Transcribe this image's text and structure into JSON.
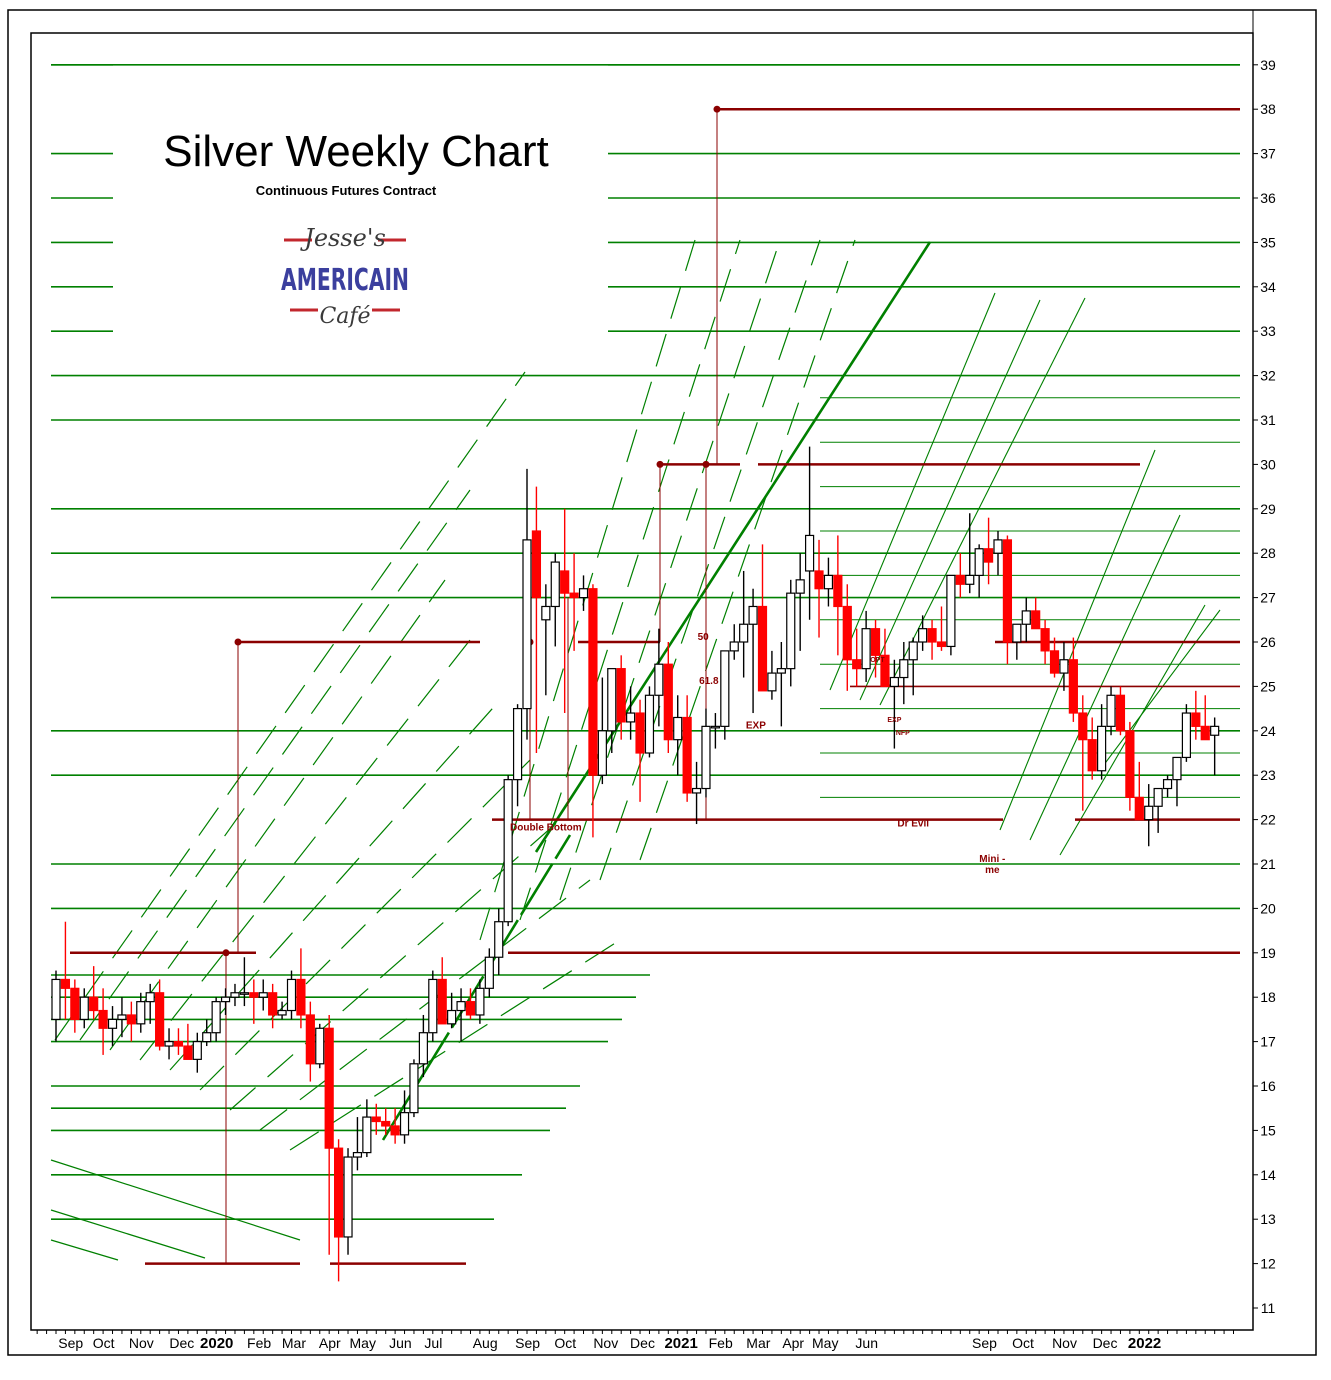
{
  "chart_data": {
    "type": "candlestick",
    "title": "Silver Weekly Chart",
    "subtitle": "Continuous Futures Contract",
    "logo": {
      "line1": "Jesse's",
      "line2": "AMERICAIN",
      "line3": "Café"
    },
    "ylim": [
      10.5,
      39.5
    ],
    "yticks": [
      11,
      12,
      13,
      14,
      15,
      16,
      17,
      18,
      19,
      20,
      21,
      22,
      23,
      24,
      25,
      26,
      27,
      28,
      29,
      30,
      31,
      32,
      33,
      34,
      35,
      36,
      37,
      38,
      39
    ],
    "x_labels": [
      {
        "text": "Sep",
        "week": 0.5
      },
      {
        "text": "Oct",
        "week": 4
      },
      {
        "text": "Nov",
        "week": 8
      },
      {
        "text": "Dec",
        "week": 12.3
      },
      {
        "text": "2020",
        "week": 16,
        "bold": true
      },
      {
        "text": "Feb",
        "week": 20.5
      },
      {
        "text": "Mar",
        "week": 24.2
      },
      {
        "text": "Apr",
        "week": 28
      },
      {
        "text": "May",
        "week": 31.5
      },
      {
        "text": "Jun",
        "week": 35.5
      },
      {
        "text": "Jul",
        "week": 39
      },
      {
        "text": "Aug",
        "week": 44.5
      },
      {
        "text": "Sep",
        "week": 49
      },
      {
        "text": "Oct",
        "week": 53
      },
      {
        "text": "Nov",
        "week": 57.3
      },
      {
        "text": "Dec",
        "week": 61.2
      },
      {
        "text": "2021",
        "week": 65.3,
        "bold": true
      },
      {
        "text": "Feb",
        "week": 69.5
      },
      {
        "text": "Mar",
        "week": 73.5
      },
      {
        "text": "Apr",
        "week": 77.2
      },
      {
        "text": "May",
        "week": 80.6
      },
      {
        "text": "Jun",
        "week": 85
      },
      {
        "text": "Sep",
        "week": 97.5
      },
      {
        "text": "Oct",
        "week": 101.6
      },
      {
        "text": "Nov",
        "week": 106
      },
      {
        "text": "Dec",
        "week": 110.3
      },
      {
        "text": "2022",
        "week": 114.5,
        "bold": true
      }
    ],
    "candles": [
      {
        "o": 17.5,
        "h": 18.6,
        "l": 17.0,
        "c": 18.4
      },
      {
        "o": 18.4,
        "h": 19.7,
        "l": 17.5,
        "c": 18.2
      },
      {
        "o": 18.2,
        "h": 18.4,
        "l": 17.2,
        "c": 17.5
      },
      {
        "o": 17.5,
        "h": 18.2,
        "l": 17.3,
        "c": 18.0
      },
      {
        "o": 18.0,
        "h": 18.7,
        "l": 17.5,
        "c": 17.7
      },
      {
        "o": 17.7,
        "h": 18.2,
        "l": 16.7,
        "c": 17.3
      },
      {
        "o": 17.3,
        "h": 17.8,
        "l": 16.9,
        "c": 17.5
      },
      {
        "o": 17.5,
        "h": 18.0,
        "l": 17.1,
        "c": 17.6
      },
      {
        "o": 17.6,
        "h": 17.9,
        "l": 17.0,
        "c": 17.4
      },
      {
        "o": 17.4,
        "h": 18.1,
        "l": 17.2,
        "c": 17.9
      },
      {
        "o": 17.9,
        "h": 18.3,
        "l": 17.4,
        "c": 18.1
      },
      {
        "o": 18.1,
        "h": 18.4,
        "l": 16.8,
        "c": 16.9
      },
      {
        "o": 16.9,
        "h": 17.3,
        "l": 16.6,
        "c": 17.0
      },
      {
        "o": 17.0,
        "h": 17.3,
        "l": 16.7,
        "c": 16.9
      },
      {
        "o": 16.9,
        "h": 17.4,
        "l": 16.6,
        "c": 16.6
      },
      {
        "o": 16.6,
        "h": 17.2,
        "l": 16.3,
        "c": 17.0
      },
      {
        "o": 17.0,
        "h": 17.5,
        "l": 16.9,
        "c": 17.2
      },
      {
        "o": 17.2,
        "h": 18.0,
        "l": 17.0,
        "c": 17.9
      },
      {
        "o": 17.9,
        "h": 18.2,
        "l": 17.6,
        "c": 18.0
      },
      {
        "o": 18.0,
        "h": 18.3,
        "l": 17.8,
        "c": 18.1
      },
      {
        "o": 18.1,
        "h": 18.9,
        "l": 17.8,
        "c": 18.1
      },
      {
        "o": 18.1,
        "h": 18.4,
        "l": 17.4,
        "c": 18.0
      },
      {
        "o": 18.0,
        "h": 18.4,
        "l": 17.7,
        "c": 18.1
      },
      {
        "o": 18.1,
        "h": 18.3,
        "l": 17.3,
        "c": 17.6
      },
      {
        "o": 17.6,
        "h": 17.9,
        "l": 17.5,
        "c": 17.7
      },
      {
        "o": 17.7,
        "h": 18.6,
        "l": 17.5,
        "c": 18.4
      },
      {
        "o": 18.4,
        "h": 19.1,
        "l": 17.3,
        "c": 17.6
      },
      {
        "o": 17.6,
        "h": 17.9,
        "l": 16.1,
        "c": 16.5
      },
      {
        "o": 16.5,
        "h": 17.4,
        "l": 16.4,
        "c": 17.3
      },
      {
        "o": 17.3,
        "h": 17.6,
        "l": 12.2,
        "c": 14.6
      },
      {
        "o": 14.6,
        "h": 14.8,
        "l": 11.6,
        "c": 12.6
      },
      {
        "o": 12.6,
        "h": 14.6,
        "l": 12.2,
        "c": 14.4
      },
      {
        "o": 14.4,
        "h": 15.3,
        "l": 14.1,
        "c": 14.5
      },
      {
        "o": 14.5,
        "h": 15.7,
        "l": 14.4,
        "c": 15.3
      },
      {
        "o": 15.3,
        "h": 15.6,
        "l": 14.9,
        "c": 15.2
      },
      {
        "o": 15.2,
        "h": 15.5,
        "l": 14.9,
        "c": 15.1
      },
      {
        "o": 15.1,
        "h": 15.5,
        "l": 14.7,
        "c": 14.9
      },
      {
        "o": 14.9,
        "h": 15.9,
        "l": 14.7,
        "c": 15.4
      },
      {
        "o": 15.4,
        "h": 16.6,
        "l": 15.3,
        "c": 16.5
      },
      {
        "o": 16.5,
        "h": 17.6,
        "l": 16.2,
        "c": 17.2
      },
      {
        "o": 17.2,
        "h": 18.6,
        "l": 17.0,
        "c": 18.4
      },
      {
        "o": 18.4,
        "h": 18.9,
        "l": 17.4,
        "c": 17.4
      },
      {
        "o": 17.4,
        "h": 18.1,
        "l": 17.3,
        "c": 17.7
      },
      {
        "o": 17.7,
        "h": 18.2,
        "l": 17.0,
        "c": 17.9
      },
      {
        "o": 17.9,
        "h": 18.2,
        "l": 17.5,
        "c": 17.6
      },
      {
        "o": 17.6,
        "h": 18.4,
        "l": 17.4,
        "c": 18.2
      },
      {
        "o": 18.2,
        "h": 19.1,
        "l": 18.0,
        "c": 18.9
      },
      {
        "o": 18.9,
        "h": 20.0,
        "l": 18.5,
        "c": 19.7
      },
      {
        "o": 19.7,
        "h": 23.0,
        "l": 19.6,
        "c": 22.9
      },
      {
        "o": 22.9,
        "h": 24.6,
        "l": 22.3,
        "c": 24.5
      },
      {
        "o": 24.5,
        "h": 29.9,
        "l": 23.8,
        "c": 28.3
      },
      {
        "o": 28.5,
        "h": 29.5,
        "l": 23.5,
        "c": 27.0
      },
      {
        "o": 26.5,
        "h": 27.3,
        "l": 24.8,
        "c": 26.8
      },
      {
        "o": 26.8,
        "h": 28.0,
        "l": 25.9,
        "c": 27.8
      },
      {
        "o": 27.6,
        "h": 29.0,
        "l": 24.4,
        "c": 27.1
      },
      {
        "o": 27.1,
        "h": 28.0,
        "l": 25.8,
        "c": 27.0
      },
      {
        "o": 27.0,
        "h": 27.5,
        "l": 26.7,
        "c": 27.2
      },
      {
        "o": 27.2,
        "h": 27.3,
        "l": 21.6,
        "c": 23.0
      },
      {
        "o": 23.0,
        "h": 25.2,
        "l": 22.8,
        "c": 24.0
      },
      {
        "o": 24.0,
        "h": 25.4,
        "l": 23.5,
        "c": 25.4
      },
      {
        "o": 25.4,
        "h": 25.7,
        "l": 23.8,
        "c": 24.2
      },
      {
        "o": 24.2,
        "h": 25.0,
        "l": 23.8,
        "c": 24.4
      },
      {
        "o": 24.4,
        "h": 24.7,
        "l": 22.4,
        "c": 23.5
      },
      {
        "o": 23.5,
        "h": 25.0,
        "l": 23.4,
        "c": 24.8
      },
      {
        "o": 24.8,
        "h": 26.3,
        "l": 24.1,
        "c": 25.5
      },
      {
        "o": 25.5,
        "h": 26.0,
        "l": 23.5,
        "c": 23.8
      },
      {
        "o": 23.8,
        "h": 24.8,
        "l": 23.0,
        "c": 24.3
      },
      {
        "o": 24.3,
        "h": 24.8,
        "l": 22.4,
        "c": 22.6
      },
      {
        "o": 22.6,
        "h": 23.3,
        "l": 21.9,
        "c": 22.7
      },
      {
        "o": 22.7,
        "h": 24.5,
        "l": 22.5,
        "c": 24.1
      },
      {
        "o": 24.1,
        "h": 24.4,
        "l": 23.6,
        "c": 24.1
      },
      {
        "o": 24.1,
        "h": 25.8,
        "l": 23.8,
        "c": 25.8
      },
      {
        "o": 25.8,
        "h": 26.4,
        "l": 25.6,
        "c": 26.0
      },
      {
        "o": 26.0,
        "h": 27.6,
        "l": 25.2,
        "c": 26.4
      },
      {
        "o": 26.4,
        "h": 27.2,
        "l": 24.4,
        "c": 26.8
      },
      {
        "o": 26.8,
        "h": 28.2,
        "l": 25.0,
        "c": 24.9
      },
      {
        "o": 24.9,
        "h": 25.8,
        "l": 24.7,
        "c": 25.3
      },
      {
        "o": 25.3,
        "h": 26.0,
        "l": 24.1,
        "c": 25.4
      },
      {
        "o": 25.4,
        "h": 27.4,
        "l": 25.0,
        "c": 27.1
      },
      {
        "o": 27.1,
        "h": 28.0,
        "l": 25.8,
        "c": 27.4
      },
      {
        "o": 27.6,
        "h": 30.4,
        "l": 26.5,
        "c": 28.4
      },
      {
        "o": 27.6,
        "h": 28.3,
        "l": 26.1,
        "c": 27.2
      },
      {
        "o": 27.2,
        "h": 27.9,
        "l": 26.8,
        "c": 27.5
      },
      {
        "o": 27.5,
        "h": 28.4,
        "l": 25.7,
        "c": 26.8
      },
      {
        "o": 26.8,
        "h": 27.3,
        "l": 24.9,
        "c": 25.6
      },
      {
        "o": 25.6,
        "h": 26.3,
        "l": 25.0,
        "c": 25.4
      },
      {
        "o": 25.4,
        "h": 26.7,
        "l": 25.1,
        "c": 26.3
      },
      {
        "o": 26.3,
        "h": 26.5,
        "l": 25.2,
        "c": 25.7
      },
      {
        "o": 25.7,
        "h": 26.3,
        "l": 25.0,
        "c": 25.0
      },
      {
        "o": 25.0,
        "h": 25.6,
        "l": 23.6,
        "c": 25.2
      },
      {
        "o": 25.2,
        "h": 26.0,
        "l": 24.6,
        "c": 25.6
      },
      {
        "o": 25.6,
        "h": 26.1,
        "l": 24.8,
        "c": 26.0
      },
      {
        "o": 26.0,
        "h": 26.6,
        "l": 25.8,
        "c": 26.3
      },
      {
        "o": 26.3,
        "h": 26.5,
        "l": 25.6,
        "c": 26.0
      },
      {
        "o": 26.0,
        "h": 26.8,
        "l": 25.8,
        "c": 25.9
      },
      {
        "o": 25.9,
        "h": 27.5,
        "l": 25.7,
        "c": 27.5
      },
      {
        "o": 27.5,
        "h": 28.0,
        "l": 27.0,
        "c": 27.3
      },
      {
        "o": 27.3,
        "h": 28.9,
        "l": 27.1,
        "c": 27.5
      },
      {
        "o": 27.5,
        "h": 28.2,
        "l": 27.0,
        "c": 28.1
      },
      {
        "o": 28.1,
        "h": 28.8,
        "l": 27.3,
        "c": 27.8
      },
      {
        "o": 28.0,
        "h": 28.5,
        "l": 27.5,
        "c": 28.3
      },
      {
        "o": 28.3,
        "h": 28.4,
        "l": 25.5,
        "c": 26.0
      },
      {
        "o": 26.0,
        "h": 26.3,
        "l": 25.6,
        "c": 26.4
      },
      {
        "o": 26.4,
        "h": 27.0,
        "l": 26.0,
        "c": 26.7
      },
      {
        "o": 26.7,
        "h": 27.0,
        "l": 26.3,
        "c": 26.3
      },
      {
        "o": 26.3,
        "h": 26.5,
        "l": 25.5,
        "c": 25.8
      },
      {
        "o": 25.8,
        "h": 26.1,
        "l": 25.2,
        "c": 25.3
      },
      {
        "o": 25.3,
        "h": 26.0,
        "l": 24.9,
        "c": 25.6
      },
      {
        "o": 25.6,
        "h": 26.1,
        "l": 24.2,
        "c": 24.4
      },
      {
        "o": 24.4,
        "h": 24.8,
        "l": 22.2,
        "c": 23.8
      },
      {
        "o": 23.8,
        "h": 24.3,
        "l": 22.9,
        "c": 23.1
      },
      {
        "o": 23.1,
        "h": 24.6,
        "l": 22.9,
        "c": 24.1
      },
      {
        "o": 24.1,
        "h": 25.0,
        "l": 23.9,
        "c": 24.8
      },
      {
        "o": 24.8,
        "h": 25.0,
        "l": 23.9,
        "c": 24.0
      },
      {
        "o": 24.0,
        "h": 24.2,
        "l": 22.2,
        "c": 22.5
      },
      {
        "o": 22.5,
        "h": 23.3,
        "l": 22.1,
        "c": 22.0
      },
      {
        "o": 22.0,
        "h": 22.8,
        "l": 21.4,
        "c": 22.3
      },
      {
        "o": 22.3,
        "h": 22.6,
        "l": 21.7,
        "c": 22.7
      },
      {
        "o": 22.7,
        "h": 23.0,
        "l": 22.5,
        "c": 22.9
      },
      {
        "o": 22.9,
        "h": 23.4,
        "l": 22.3,
        "c": 23.4
      },
      {
        "o": 23.4,
        "h": 24.6,
        "l": 23.3,
        "c": 24.4
      },
      {
        "o": 24.4,
        "h": 24.9,
        "l": 23.8,
        "c": 24.1
      },
      {
        "o": 24.1,
        "h": 24.8,
        "l": 23.9,
        "c": 23.8
      },
      {
        "o": 23.9,
        "h": 24.3,
        "l": 23.0,
        "c": 24.1
      }
    ],
    "annotations": [
      {
        "text": "Double Bottom",
        "week": 52,
        "y": 21.75
      },
      {
        "text": "50",
        "week": 68.7,
        "y": 26.05
      },
      {
        "text": "61.8",
        "week": 69.3,
        "y": 25.05
      },
      {
        "text": "EXP",
        "week": 74.3,
        "y": 24.05
      },
      {
        "text": "OPT",
        "week": 87.2,
        "y": 25.55,
        "small": true
      },
      {
        "text": "EXP",
        "week": 89.0,
        "y": 24.2,
        "small": true
      },
      {
        "text": "NFP",
        "week": 89.9,
        "y": 23.9,
        "small": true
      },
      {
        "text": "Dr Evil",
        "week": 91.0,
        "y": 21.85
      },
      {
        "text": "Mini -",
        "week": 99.4,
        "y": 21.05
      },
      {
        "text": "me",
        "week": 99.4,
        "y": 20.8
      }
    ]
  },
  "colors": {
    "green": "#008000",
    "darkred": "#8b0000",
    "red": "#ff0000",
    "axis": "#000000"
  }
}
